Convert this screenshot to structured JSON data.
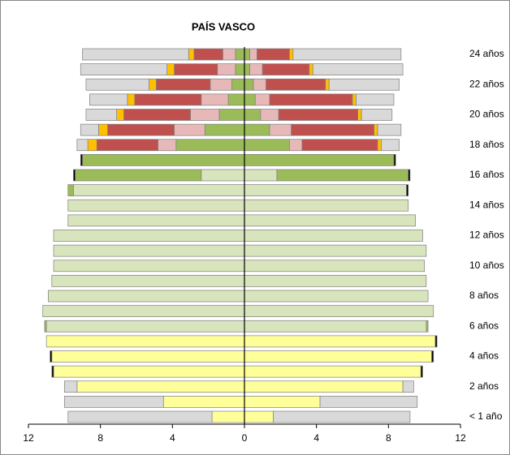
{
  "chart_data": {
    "type": "pyramid",
    "title": "PAÍS VASCO",
    "categories": [
      "< 1 año",
      null,
      "2 años",
      null,
      "4 años",
      null,
      "6 años",
      null,
      "8 años",
      null,
      "10 años",
      null,
      "12 años",
      null,
      "14 años",
      null,
      "16 años",
      null,
      "18 años",
      null,
      "20 años",
      null,
      "22 años",
      null,
      "24 años"
    ],
    "xlim": [
      -12,
      12
    ],
    "xticks": [
      {
        "value": -12,
        "label": "12"
      },
      {
        "value": -8,
        "label": "8"
      },
      {
        "value": -4,
        "label": "4"
      },
      0,
      4,
      8,
      12
    ],
    "series": [
      {
        "color": "#ffff99",
        "left": [
          1.8,
          4.5,
          9.3,
          10.6,
          10.7,
          11.0,
          0,
          0,
          0,
          0,
          0,
          0,
          0,
          0,
          0,
          0,
          0,
          0,
          0,
          0,
          0,
          0,
          0,
          0,
          0
        ],
        "right": [
          1.6,
          4.2,
          8.8,
          9.8,
          10.4,
          10.6,
          0,
          0,
          0,
          0,
          0,
          0,
          0,
          0,
          0,
          0,
          0,
          0,
          0,
          0,
          0,
          0,
          0,
          0,
          0
        ]
      },
      {
        "color": "#d8e4bc",
        "left": [
          0,
          0,
          0,
          0,
          0,
          0,
          11.0,
          11.2,
          10.9,
          10.7,
          10.6,
          10.6,
          10.6,
          9.8,
          9.8,
          9.5,
          2.4,
          0,
          0,
          0,
          0,
          0,
          0,
          0,
          0
        ],
        "right": [
          0,
          0,
          0,
          0,
          0,
          0,
          10.1,
          10.5,
          10.2,
          10.1,
          10.0,
          10.1,
          9.9,
          9.5,
          9.1,
          9.0,
          1.8,
          0,
          0,
          0,
          0,
          0,
          0,
          0,
          0
        ]
      },
      {
        "color": "#9bbb59",
        "left": [
          0,
          0,
          0,
          0,
          0,
          0,
          0.1,
          0,
          0,
          0,
          0,
          0,
          0,
          0,
          0,
          0.3,
          7.0,
          9.0,
          3.8,
          2.2,
          1.4,
          0.9,
          0.7,
          0.5,
          0.5
        ],
        "right": [
          0,
          0,
          0,
          0,
          0,
          0,
          0.1,
          0,
          0,
          0,
          0,
          0,
          0,
          0,
          0,
          0,
          7.3,
          8.3,
          2.5,
          1.4,
          0.9,
          0.6,
          0.5,
          0.3,
          0.3
        ]
      },
      {
        "color": "#e6b9b8",
        "left": [
          0,
          0,
          0,
          0,
          0,
          0,
          0,
          0,
          0,
          0,
          0,
          0,
          0,
          0,
          0,
          0,
          0,
          0,
          1.0,
          1.7,
          1.6,
          1.5,
          1.2,
          1.0,
          0.7
        ],
        "right": [
          0,
          0,
          0,
          0,
          0,
          0,
          0,
          0,
          0,
          0,
          0,
          0,
          0,
          0,
          0,
          0,
          0,
          0,
          0.7,
          1.2,
          1.0,
          0.8,
          0.7,
          0.7,
          0.4
        ]
      },
      {
        "color": "#c0504d",
        "left": [
          0,
          0,
          0,
          0,
          0,
          0,
          0,
          0,
          0,
          0,
          0,
          0,
          0,
          0,
          0,
          0,
          0,
          0,
          3.4,
          3.7,
          3.7,
          3.7,
          3.0,
          2.4,
          1.6
        ],
        "right": [
          0,
          0,
          0,
          0,
          0,
          0,
          0,
          0,
          0,
          0,
          0,
          0,
          0,
          0,
          0,
          0,
          0,
          0,
          4.2,
          4.6,
          4.4,
          4.6,
          3.3,
          2.6,
          1.8
        ]
      },
      {
        "color": "#ffc000",
        "left": [
          0,
          0,
          0,
          0,
          0,
          0,
          0,
          0,
          0,
          0,
          0,
          0,
          0,
          0,
          0,
          0,
          0,
          0,
          0.5,
          0.5,
          0.4,
          0.4,
          0.4,
          0.4,
          0.3
        ],
        "right": [
          0,
          0,
          0,
          0,
          0,
          0,
          0,
          0,
          0,
          0,
          0,
          0,
          0,
          0,
          0,
          0,
          0,
          0,
          0.2,
          0.2,
          0.2,
          0.2,
          0.2,
          0.2,
          0.2
        ]
      },
      {
        "color": "#000000",
        "left": [
          0,
          0,
          0,
          0.1,
          0.1,
          0,
          0,
          0,
          0,
          0,
          0,
          0,
          0,
          0,
          0,
          0,
          0.1,
          0.1,
          0,
          0,
          0,
          0,
          0,
          0,
          0
        ],
        "right": [
          0,
          0,
          0,
          0.1,
          0.1,
          0.1,
          0,
          0,
          0,
          0,
          0,
          0,
          0,
          0,
          0,
          0.1,
          0.1,
          0.1,
          0,
          0,
          0,
          0,
          0,
          0,
          0
        ]
      },
      {
        "color": "#d9d9d9",
        "left": [
          8.0,
          5.5,
          0.7,
          0,
          0,
          0,
          0,
          0,
          0,
          0,
          0,
          0,
          0,
          0,
          0,
          0,
          0,
          0,
          0.6,
          1.0,
          1.7,
          2.1,
          3.5,
          4.8,
          5.9
        ],
        "right": [
          7.6,
          5.4,
          0.6,
          0,
          0,
          0,
          0,
          0,
          0,
          0,
          0,
          0,
          0,
          0,
          0,
          0,
          0,
          0,
          1.0,
          1.3,
          1.7,
          2.1,
          3.9,
          5.0,
          6.0
        ]
      }
    ]
  }
}
